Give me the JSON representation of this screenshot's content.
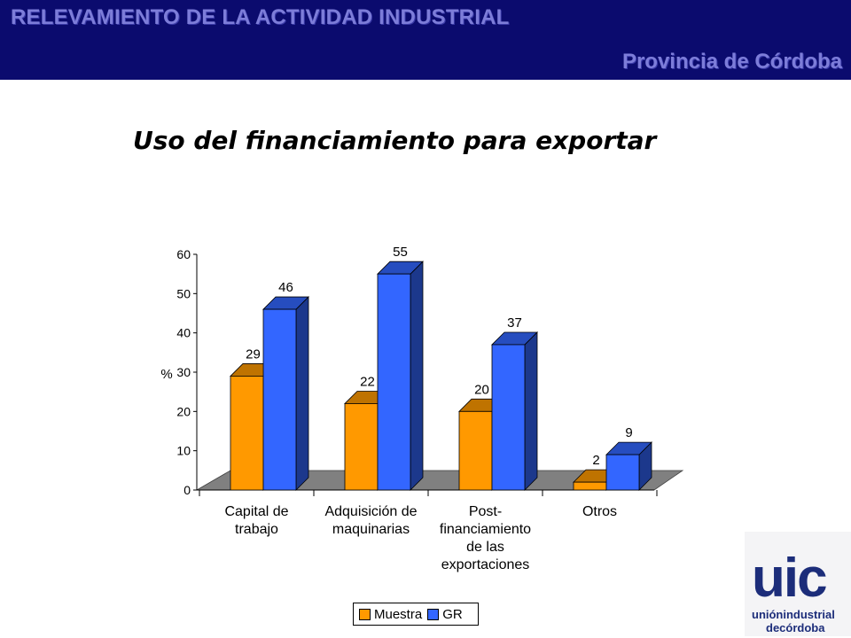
{
  "header": {
    "title": "RELEVAMIENTO DE LA ACTIVIDAD INDUSTRIAL",
    "subtitle": "Provincia de Córdoba"
  },
  "slide_title": "Uso del financiamiento para exportar",
  "logo": {
    "mark": "uic",
    "line1": "uniónindustrial",
    "line2": "decórdoba"
  },
  "colors": {
    "banner": "#0b0b6e",
    "muestra": "#ff9900",
    "gr": "#3366ff",
    "floor": "#808080"
  },
  "chart_data": {
    "type": "bar",
    "title": "Uso del financiamiento para exportar",
    "ylabel": "%",
    "xlabel": "",
    "ylim": [
      0,
      60
    ],
    "yticks": [
      0,
      10,
      20,
      30,
      40,
      50,
      60
    ],
    "categories": [
      [
        "Capital de",
        "trabajo"
      ],
      [
        "Adquisición de",
        "maquinarias"
      ],
      [
        "Post-",
        "financiamiento",
        "de las",
        "exportaciones"
      ],
      [
        "Otros"
      ]
    ],
    "series": [
      {
        "name": "Muestra",
        "values": [
          29,
          22,
          20,
          2
        ]
      },
      {
        "name": "GR",
        "values": [
          46,
          55,
          37,
          9
        ]
      }
    ],
    "legend_position": "bottom",
    "grid": false
  }
}
